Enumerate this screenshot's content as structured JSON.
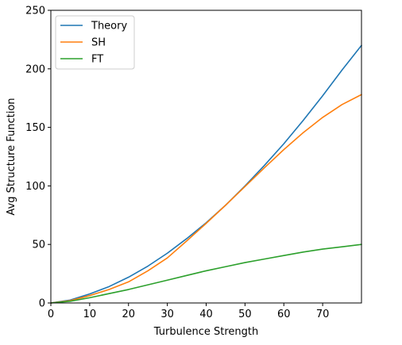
{
  "chart_data": {
    "type": "line",
    "title": "",
    "xlabel": "Turbulence Strength",
    "ylabel": "Avg Structure Function",
    "xlim": [
      0,
      80
    ],
    "ylim": [
      0,
      250
    ],
    "xticks": [
      0,
      10,
      20,
      30,
      40,
      50,
      60,
      70
    ],
    "yticks": [
      0,
      50,
      100,
      150,
      200,
      250
    ],
    "grid": false,
    "legend_position": "upper-left",
    "x": [
      0,
      5,
      10,
      15,
      20,
      25,
      30,
      35,
      40,
      45,
      50,
      55,
      60,
      65,
      70,
      75,
      80
    ],
    "series": [
      {
        "name": "Theory",
        "color": "#1f77b4",
        "values": [
          0,
          2.5,
          7.7,
          14.0,
          22.0,
          31.5,
          42.5,
          55.0,
          68.5,
          83.5,
          100.0,
          117.5,
          136.0,
          156.0,
          177.0,
          199.0,
          220.0
        ]
      },
      {
        "name": "SH",
        "color": "#ff7f0e",
        "values": [
          0,
          2.0,
          6.3,
          11.5,
          18.0,
          27.5,
          38.5,
          53.0,
          68.0,
          83.5,
          99.5,
          115.5,
          131.0,
          145.5,
          158.5,
          169.5,
          178.0
        ]
      },
      {
        "name": "FT",
        "color": "#2ca02c",
        "values": [
          0,
          1.5,
          4.5,
          8.0,
          11.5,
          15.5,
          19.5,
          23.5,
          27.5,
          31.0,
          34.5,
          37.5,
          40.5,
          43.5,
          46.0,
          48.0,
          50.0
        ]
      }
    ]
  }
}
